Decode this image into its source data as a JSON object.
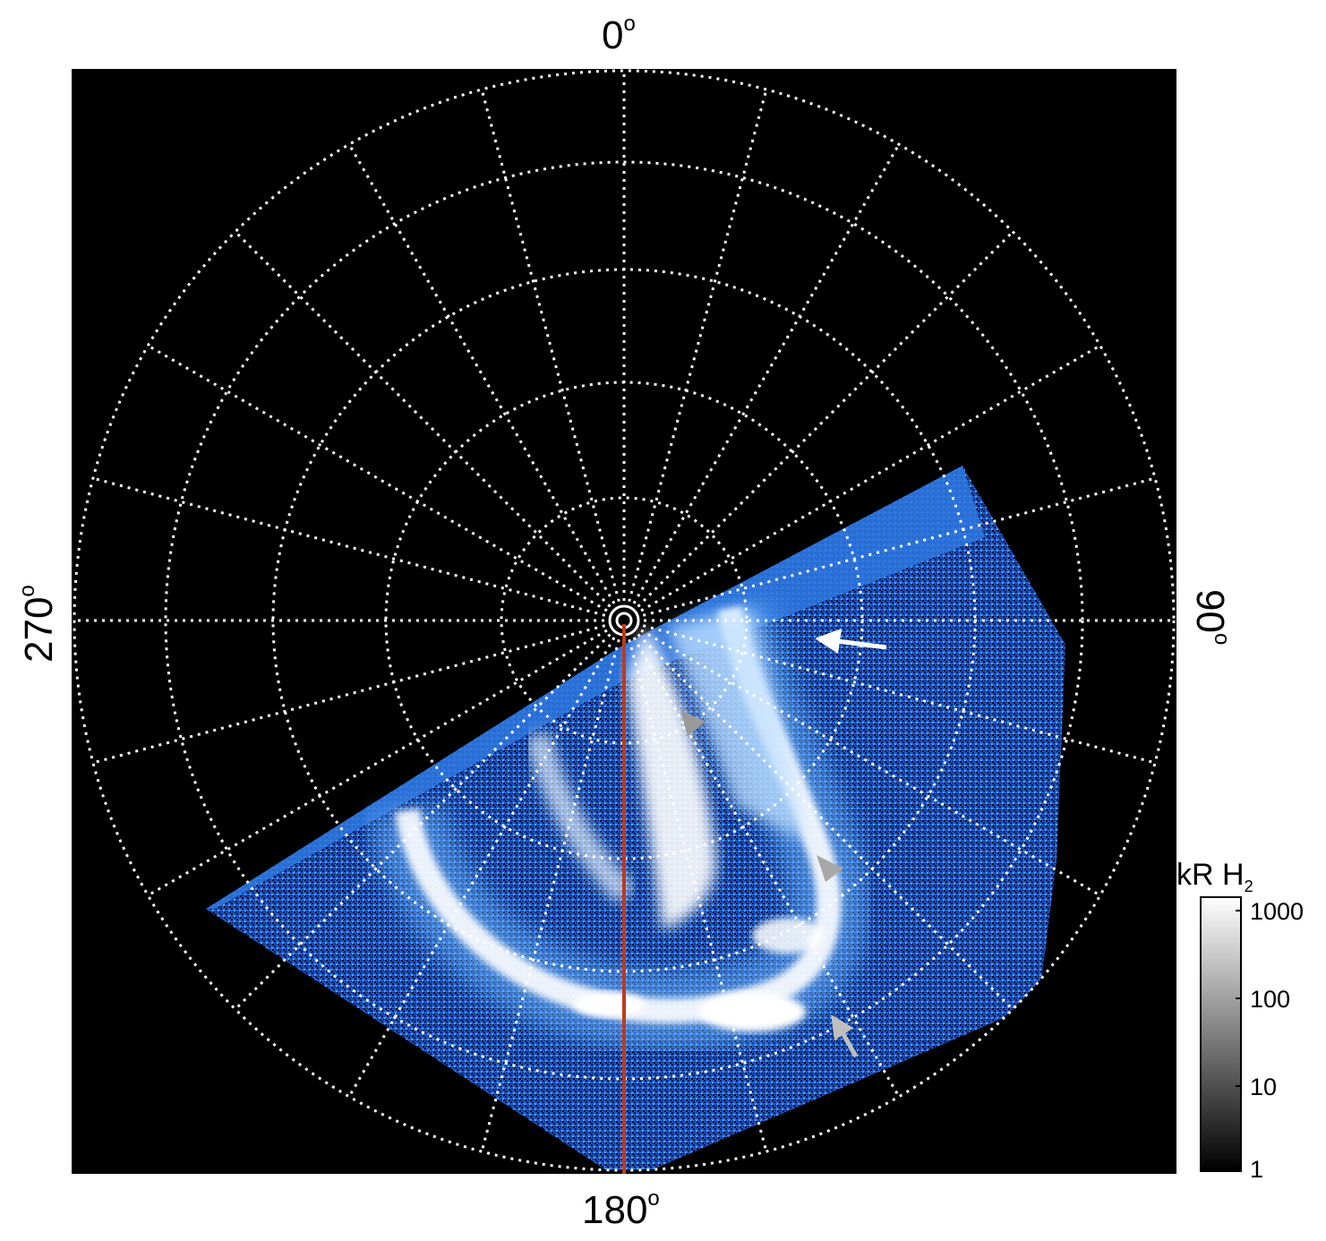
{
  "axis_labels": {
    "top": "0",
    "right": "90",
    "bottom": "180",
    "left": "270",
    "degree_symbol": "o"
  },
  "colorbar": {
    "title_main": "kR H",
    "title_sub": "2",
    "ticks": [
      "1000",
      "100",
      "10",
      "1"
    ]
  },
  "colors": {
    "background": "#000000",
    "grid": "#ffffff",
    "meridian_line": "#c0391b",
    "aurora_bright": "#ffffff",
    "aurora_mid": "#3a8ff0",
    "aurora_dark": "#0a2a8a",
    "arrow_white": "#ffffff",
    "arrow_gray": "#9a9a9a"
  },
  "annotations": {
    "arrows": [
      {
        "name": "white-arrow",
        "color": "white"
      },
      {
        "name": "gray-arrow-upper",
        "color": "gray"
      },
      {
        "name": "gray-arrow-middle",
        "color": "gray"
      },
      {
        "name": "gray-arrow-lower",
        "color": "gray"
      }
    ]
  }
}
